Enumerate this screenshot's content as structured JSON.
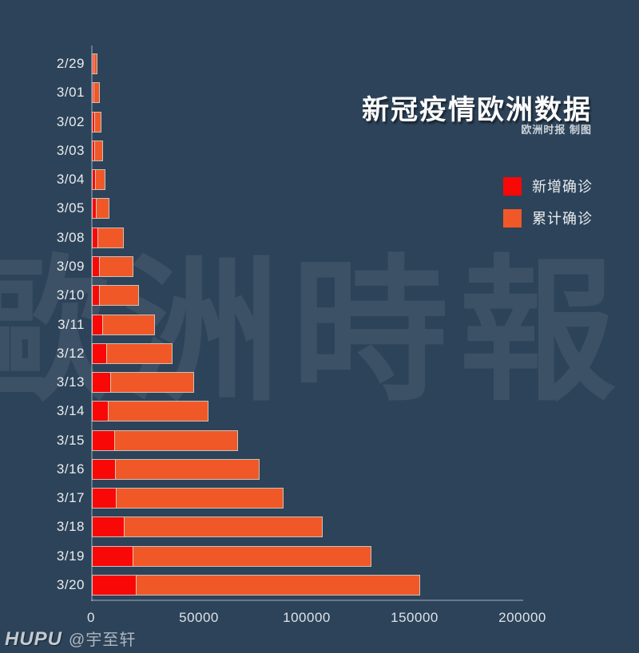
{
  "title": "新冠疫情欧洲数据",
  "subtitle": "欧洲时报 制图",
  "watermark_big": "歐洲時報",
  "footer": {
    "brand": "HUPU",
    "handle": "@宇至轩"
  },
  "colors": {
    "background": "#2d4359",
    "new_cases": "#f90808",
    "cumulative_cases": "#f15827",
    "bar_border": "rgba(223,217,206,0.85)",
    "text": "#e8ecef"
  },
  "legend": [
    {
      "label": "新增确诊",
      "color": "#f90808"
    },
    {
      "label": "累计确诊",
      "color": "#f15827"
    }
  ],
  "chart_data": {
    "type": "bar",
    "orientation": "horizontal",
    "title": "新冠疫情欧洲数据",
    "xlabel": "",
    "ylabel": "",
    "xlim": [
      0,
      200000
    ],
    "x_ticks": [
      0,
      50000,
      100000,
      150000,
      200000
    ],
    "x_tick_labels": [
      "0",
      "50000",
      "100000",
      "150000",
      "200000"
    ],
    "grid": false,
    "legend_position": "upper-right",
    "categories": [
      "2/29",
      "3/01",
      "3/02",
      "3/03",
      "3/04",
      "3/05",
      "3/08",
      "3/09",
      "3/10",
      "3/11",
      "3/12",
      "3/13",
      "3/14",
      "3/15",
      "3/16",
      "3/17",
      "3/18",
      "3/19",
      "3/20"
    ],
    "series": [
      {
        "name": "新增确诊",
        "color": "#f90808",
        "values": [
          300,
          500,
          600,
          800,
          1000,
          1400,
          2100,
          2900,
          3000,
          4300,
          6300,
          8200,
          7000,
          10000,
          10300,
          10800,
          14300,
          18500,
          19900
        ]
      },
      {
        "name": "累计确诊",
        "color": "#f15827",
        "values": [
          1900,
          3100,
          3600,
          4400,
          5500,
          7400,
          14000,
          18600,
          21200,
          28700,
          36500,
          46800,
          53200,
          67000,
          77000,
          88300,
          106300,
          129000,
          151500
        ]
      }
    ],
    "note": "红色段为当日新增确诊（位于条形左端），条形总长为累计确诊"
  }
}
